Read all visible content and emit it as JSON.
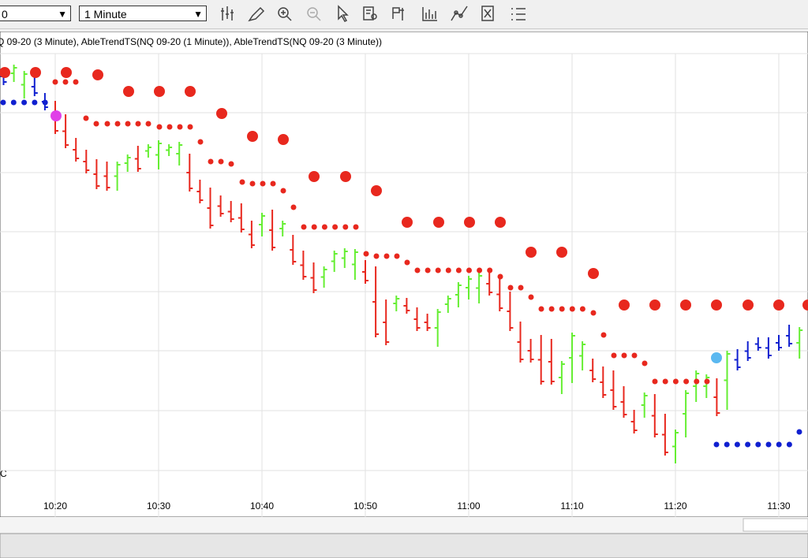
{
  "toolbar": {
    "symbol": "0",
    "interval": "1 Minute"
  },
  "chart": {
    "label": "Q 09-20 (3 Minute), AbleTrendTS(NQ 09-20 (1 Minute)), AbleTrendTS(NQ 09-20 (3 Minute))",
    "x_labels": [
      "10:20",
      "10:30",
      "10:40",
      "10:50",
      "11:00",
      "11:10",
      "11:20",
      "11:30"
    ],
    "corner_label": "C"
  }
}
